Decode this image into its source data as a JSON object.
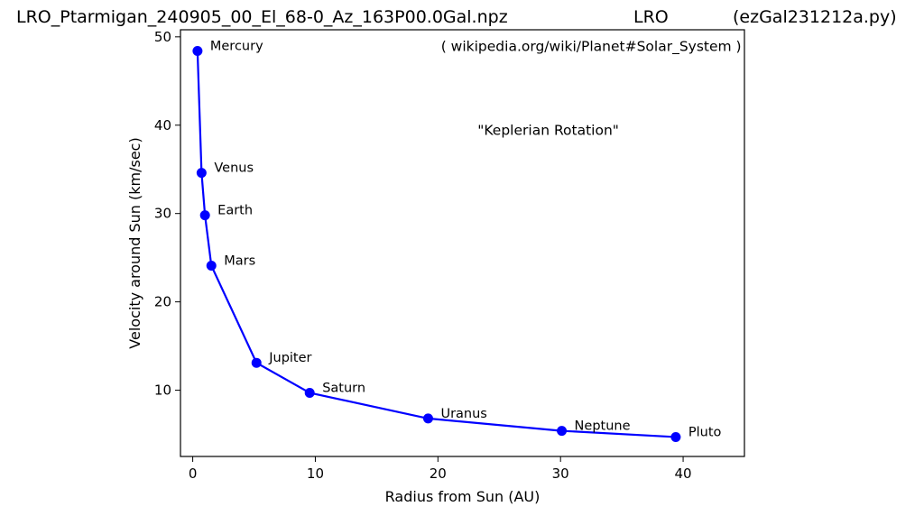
{
  "header": {
    "left": "LRO_Ptarmigan_240905_00_El_68-0_Az_163P00.0Gal.npz",
    "center": "LRO",
    "right": "(ezGal231212a.py)"
  },
  "chart_data": {
    "type": "line",
    "xlabel": "Radius from Sun (AU)",
    "ylabel": "Velocity around Sun (km/sec)",
    "xlim": [
      -1,
      45
    ],
    "ylim": [
      2.5,
      50.8
    ],
    "xticks": [
      0,
      10,
      20,
      30,
      40
    ],
    "yticks": [
      10,
      20,
      30,
      40,
      50
    ],
    "grid": false,
    "annotations": [
      {
        "text": "( wikipedia.org/wiki/Planet#Solar_System )",
        "x": 32.5,
        "y": 48.4
      },
      {
        "text": "\"Keplerian Rotation\"",
        "x": 29,
        "y": 38.9
      }
    ],
    "series": [
      {
        "color": "#0000ff",
        "points": [
          {
            "label": "Mercury",
            "x": 0.39,
            "y": 48.4
          },
          {
            "label": "Venus",
            "x": 0.72,
            "y": 34.6
          },
          {
            "label": "Earth",
            "x": 1.0,
            "y": 29.8
          },
          {
            "label": "Mars",
            "x": 1.52,
            "y": 24.1
          },
          {
            "label": "Jupiter",
            "x": 5.2,
            "y": 13.1
          },
          {
            "label": "Saturn",
            "x": 9.54,
            "y": 9.7
          },
          {
            "label": "Uranus",
            "x": 19.2,
            "y": 6.8
          },
          {
            "label": "Neptune",
            "x": 30.1,
            "y": 5.4
          },
          {
            "label": "Pluto",
            "x": 39.4,
            "y": 4.7
          }
        ]
      }
    ]
  }
}
